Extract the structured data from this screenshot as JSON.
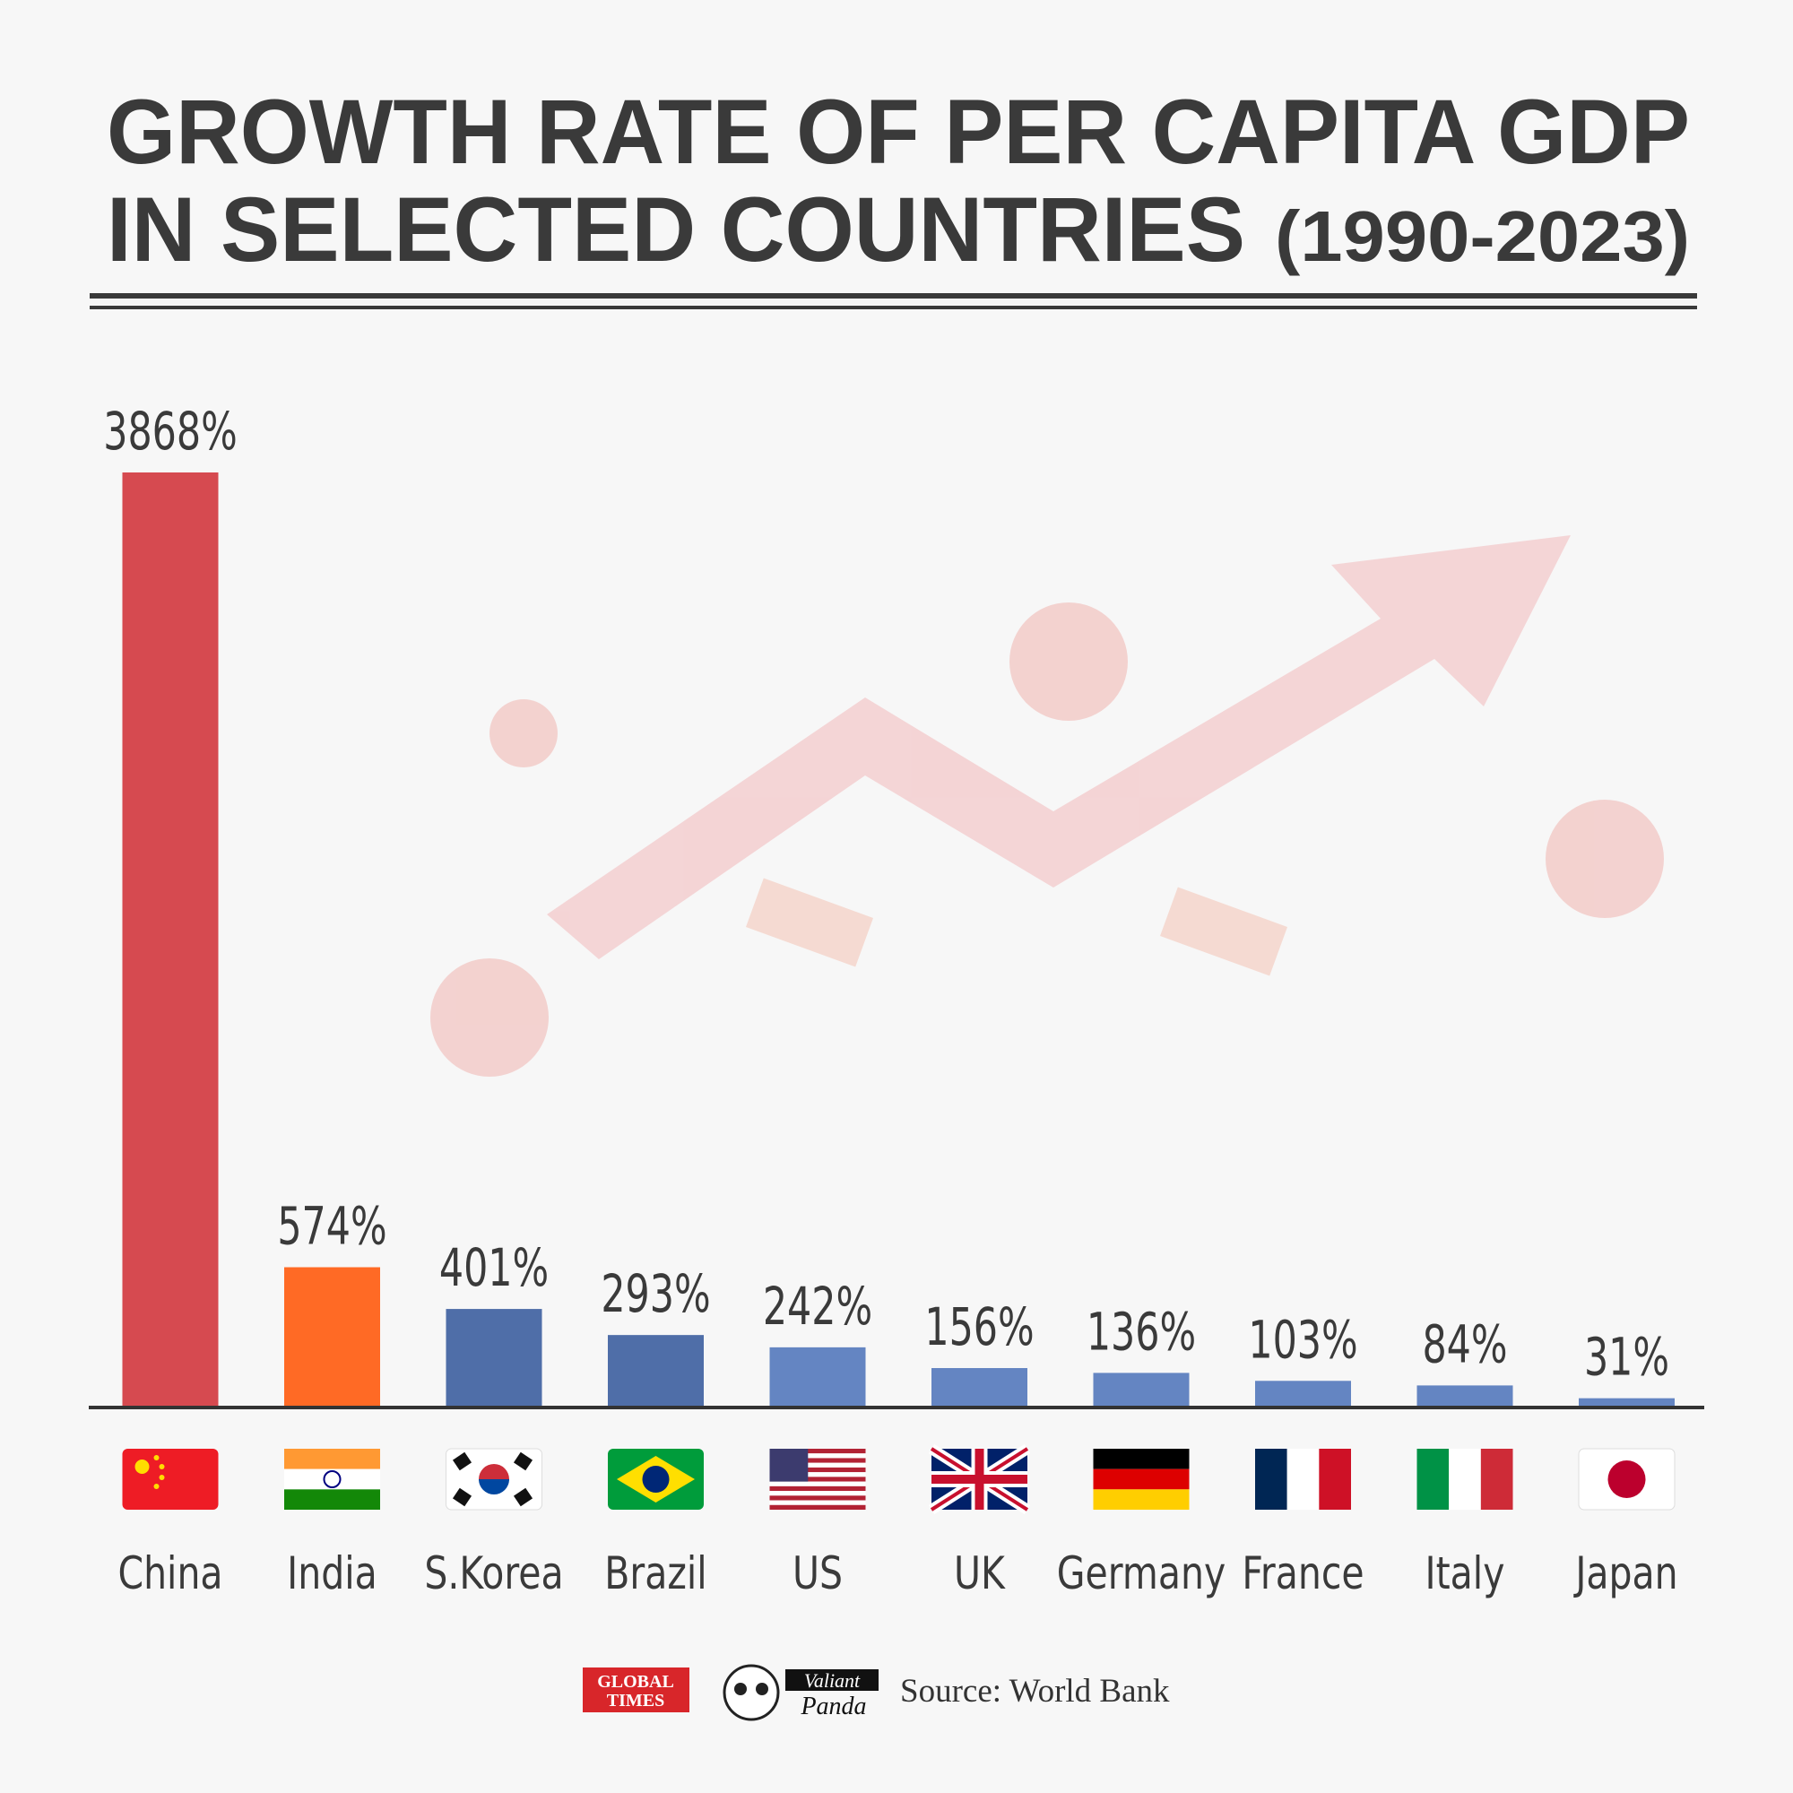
{
  "chart_data": {
    "type": "bar",
    "title": [
      "GROWTH RATE OF PER CAPITA GDP",
      "IN SELECTED COUNTRIES"
    ],
    "period": "(1990-2023)",
    "categories": [
      "China",
      "India",
      "S.Korea",
      "Brazil",
      "US",
      "UK",
      "Germany",
      "France",
      "Italy",
      "Japan"
    ],
    "values": [
      3868,
      574,
      401,
      293,
      242,
      156,
      136,
      103,
      84,
      31
    ],
    "value_labels": [
      "3868%",
      "574%",
      "401%",
      "293%",
      "242%",
      "156%",
      "136%",
      "103%",
      "84%",
      "31%"
    ],
    "colors": [
      "#d64a50",
      "#ff6a25",
      "#4f6ea8",
      "#4f6ea8",
      "#6485c2",
      "#6485c2",
      "#6485c2",
      "#6485c2",
      "#6485c2",
      "#6485c2"
    ],
    "source": "Source: World Bank",
    "logos": {
      "global_times": [
        "GLOBAL",
        "TIMES"
      ],
      "valiant_panda": [
        "Valiant",
        "Panda"
      ]
    }
  }
}
